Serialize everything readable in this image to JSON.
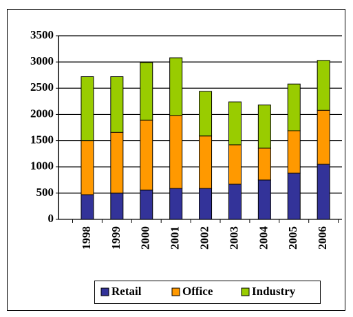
{
  "chart_data": {
    "type": "stacked_bar",
    "categories": [
      "1998",
      "1999",
      "2000",
      "2001",
      "2002",
      "2003",
      "2004",
      "2005",
      "2006"
    ],
    "series": [
      {
        "name": "Retail",
        "color": "#333399",
        "values": [
          470,
          500,
          560,
          590,
          590,
          670,
          750,
          880,
          1050
        ]
      },
      {
        "name": "Office",
        "color": "#ff9900",
        "values": [
          1030,
          1160,
          1330,
          1390,
          1000,
          750,
          610,
          810,
          1030
        ]
      },
      {
        "name": "Industry",
        "color": "#99cc00",
        "values": [
          1220,
          1060,
          1100,
          1100,
          850,
          820,
          820,
          890,
          950
        ]
      }
    ],
    "ylim": [
      0,
      3500
    ],
    "yticks": [
      0,
      500,
      1000,
      1500,
      2000,
      2500,
      3000,
      3500
    ],
    "grid": true
  }
}
